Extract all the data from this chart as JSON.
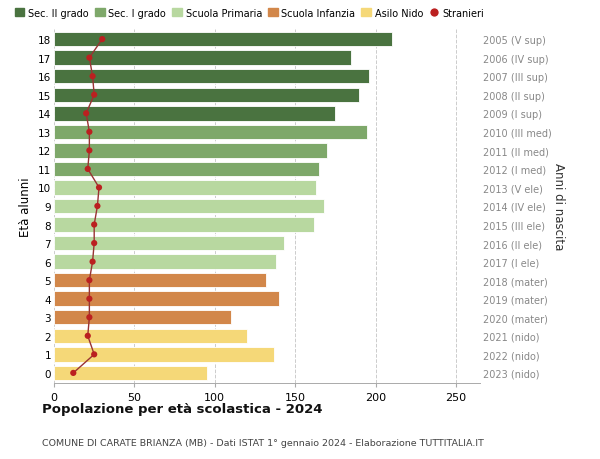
{
  "ages": [
    18,
    17,
    16,
    15,
    14,
    13,
    12,
    11,
    10,
    9,
    8,
    7,
    6,
    5,
    4,
    3,
    2,
    1,
    0
  ],
  "values": [
    210,
    185,
    196,
    190,
    175,
    195,
    170,
    165,
    163,
    168,
    162,
    143,
    138,
    132,
    140,
    110,
    120,
    137,
    95
  ],
  "stranieri": [
    30,
    22,
    24,
    25,
    20,
    22,
    22,
    21,
    28,
    27,
    25,
    25,
    24,
    22,
    22,
    22,
    21,
    25,
    12
  ],
  "right_labels": [
    "2005 (V sup)",
    "2006 (IV sup)",
    "2007 (III sup)",
    "2008 (II sup)",
    "2009 (I sup)",
    "2010 (III med)",
    "2011 (II med)",
    "2012 (I med)",
    "2013 (V ele)",
    "2014 (IV ele)",
    "2015 (III ele)",
    "2016 (II ele)",
    "2017 (I ele)",
    "2018 (mater)",
    "2019 (mater)",
    "2020 (mater)",
    "2021 (nido)",
    "2022 (nido)",
    "2023 (nido)"
  ],
  "bar_colors": [
    "#4a7340",
    "#4a7340",
    "#4a7340",
    "#4a7340",
    "#4a7340",
    "#7ea86a",
    "#7ea86a",
    "#7ea86a",
    "#b8d8a0",
    "#b8d8a0",
    "#b8d8a0",
    "#b8d8a0",
    "#b8d8a0",
    "#d2874a",
    "#d2874a",
    "#d2874a",
    "#f5d878",
    "#f5d878",
    "#f5d878"
  ],
  "legend_labels": [
    "Sec. II grado",
    "Sec. I grado",
    "Scuola Primaria",
    "Scuola Infanzia",
    "Asilo Nido",
    "Stranieri"
  ],
  "legend_colors": [
    "#4a7340",
    "#7ea86a",
    "#b8d8a0",
    "#d2874a",
    "#f5d878",
    "#bb2020"
  ],
  "title": "Popolazione per età scolastica - 2024",
  "subtitle": "COMUNE DI CARATE BRIANZA (MB) - Dati ISTAT 1° gennaio 2024 - Elaborazione TUTTITALIA.IT",
  "ylabel": "Età alunni",
  "right_ylabel": "Anni di nascita",
  "xlim": [
    0,
    265
  ],
  "background_color": "#ffffff",
  "bar_height": 0.78,
  "stranieri_color": "#bb2020",
  "stranieri_line_color": "#993333",
  "right_label_color": "#888888",
  "grid_color": "#cccccc"
}
